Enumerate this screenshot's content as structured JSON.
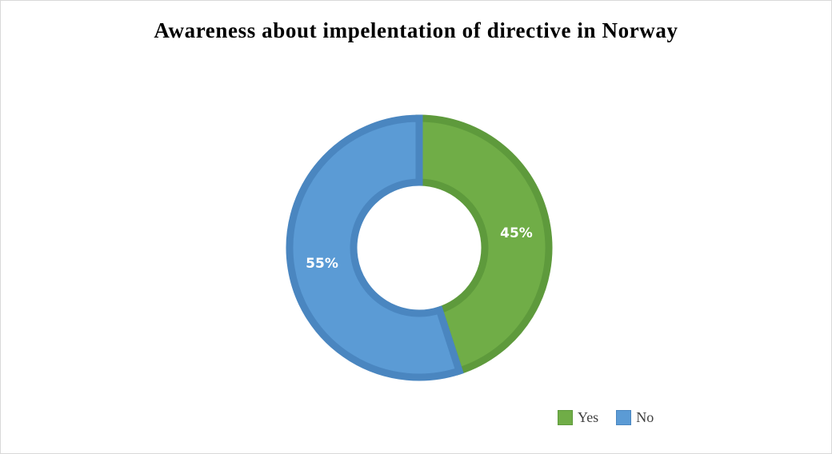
{
  "chart_data": {
    "type": "donut",
    "title": "Awareness about impelentation of directive in Norway",
    "categories": [
      "Yes",
      "No"
    ],
    "values": [
      45,
      55
    ],
    "labels": [
      "45%",
      "55%"
    ],
    "colors": [
      "#70AD47",
      "#5B9BD5"
    ],
    "border_colors": [
      "#5E9A3C",
      "#4A86C0"
    ],
    "legend_position": "bottom-right"
  }
}
